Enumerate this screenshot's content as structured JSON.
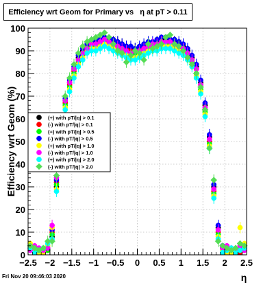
{
  "footer": {
    "timestamp": "Fri Nov 20 09:46:03 2020"
  },
  "chart_data": {
    "type": "scatter",
    "title": "Efficiency wrt Geom for Primary vs   η at pT > 0.11",
    "xlabel": "η",
    "ylabel": "Efficiency wrt Geom (%)",
    "xlim": [
      -2.5,
      2.5
    ],
    "ylim": [
      0,
      100
    ],
    "x_ticks": [
      "−2.5",
      "−2",
      "−1.5",
      "−1",
      "−0.5",
      "0",
      "0.5",
      "1",
      "1.5",
      "2",
      "2.5"
    ],
    "y_ticks": [
      "0",
      "10",
      "20",
      "30",
      "40",
      "50",
      "60",
      "70",
      "80",
      "90",
      "100"
    ],
    "grid": true,
    "legend_position": "middle-left",
    "x": [
      -2.45,
      -2.35,
      -2.25,
      -2.15,
      -2.05,
      -1.95,
      -1.85,
      -1.75,
      -1.65,
      -1.55,
      -1.45,
      -1.35,
      -1.25,
      -1.15,
      -1.05,
      -0.95,
      -0.85,
      -0.75,
      -0.65,
      -0.55,
      -0.45,
      -0.35,
      -0.25,
      -0.15,
      -0.05,
      0.05,
      0.15,
      0.25,
      0.35,
      0.45,
      0.55,
      0.65,
      0.75,
      0.85,
      0.95,
      1.05,
      1.15,
      1.25,
      1.35,
      1.45,
      1.55,
      1.65,
      1.75,
      1.85,
      1.95,
      2.05,
      2.15,
      2.25,
      2.35,
      2.45
    ],
    "series": [
      {
        "name": "(+) with pT/|q| > 0.1",
        "color": "#000000",
        "marker": "circle",
        "values": [
          3,
          2,
          1,
          1,
          2,
          8,
          30,
          55,
          68,
          76,
          82,
          87,
          90,
          92,
          93,
          94,
          94,
          95,
          95,
          94,
          94,
          93,
          92,
          91,
          91,
          91,
          92,
          93,
          93,
          94,
          95,
          95,
          95,
          94,
          93,
          92,
          90,
          87,
          83,
          76,
          66,
          52,
          30,
          12,
          3,
          2,
          1,
          1,
          2,
          3
        ]
      },
      {
        "name": "(-) with pT/|q| > 0.1",
        "color": "#ff0000",
        "marker": "circle",
        "values": [
          2,
          2,
          1,
          2,
          3,
          10,
          32,
          56,
          67,
          75,
          81,
          86,
          89,
          91,
          92,
          93,
          94,
          94,
          94,
          93,
          93,
          92,
          91,
          90,
          90,
          91,
          92,
          92,
          93,
          93,
          94,
          94,
          94,
          93,
          92,
          91,
          89,
          86,
          82,
          75,
          64,
          50,
          28,
          10,
          2,
          2,
          1,
          2,
          1,
          2
        ]
      },
      {
        "name": "(+) with pT/|q| > 0.5",
        "color": "#00ff00",
        "marker": "circle",
        "values": [
          4,
          3,
          2,
          1,
          2,
          9,
          31,
          54,
          66,
          74,
          80,
          85,
          88,
          91,
          92,
          92,
          93,
          94,
          93,
          92,
          91,
          90,
          89,
          88,
          89,
          89,
          90,
          91,
          92,
          92,
          93,
          93,
          93,
          92,
          91,
          90,
          88,
          85,
          80,
          73,
          63,
          49,
          27,
          9,
          3,
          2,
          2,
          1,
          2,
          4
        ]
      },
      {
        "name": "(-) with pT/|q| > 0.5",
        "color": "#0000ff",
        "marker": "circle",
        "values": [
          3,
          3,
          2,
          2,
          3,
          11,
          33,
          57,
          69,
          77,
          83,
          88,
          91,
          93,
          94,
          95,
          95,
          96,
          95,
          95,
          94,
          93,
          92,
          92,
          91,
          92,
          93,
          94,
          94,
          95,
          96,
          96,
          95,
          95,
          94,
          93,
          91,
          88,
          84,
          77,
          67,
          53,
          31,
          13,
          4,
          2,
          2,
          2,
          3,
          3
        ]
      },
      {
        "name": "(+) with pT/|q| > 1.0",
        "color": "#ffff00",
        "marker": "circle",
        "values": [
          5,
          2,
          1,
          1,
          4,
          12,
          29,
          53,
          65,
          73,
          79,
          84,
          87,
          90,
          91,
          91,
          92,
          93,
          92,
          91,
          90,
          89,
          88,
          87,
          87,
          88,
          89,
          90,
          91,
          91,
          92,
          92,
          92,
          91,
          90,
          89,
          87,
          84,
          79,
          72,
          62,
          48,
          26,
          8,
          2,
          1,
          1,
          2,
          12,
          5
        ]
      },
      {
        "name": "(-) with pT/|q| > 1.0",
        "color": "#ff00ff",
        "marker": "circle",
        "values": [
          2,
          4,
          3,
          2,
          3,
          13,
          34,
          58,
          68,
          76,
          82,
          86,
          89,
          91,
          93,
          93,
          94,
          95,
          94,
          93,
          92,
          91,
          90,
          89,
          90,
          90,
          91,
          92,
          93,
          93,
          94,
          94,
          94,
          93,
          92,
          91,
          89,
          86,
          82,
          75,
          65,
          51,
          29,
          11,
          3,
          4,
          3,
          2,
          4,
          2
        ]
      },
      {
        "name": "(+) with pT/|q| > 2.0",
        "color": "#00ffff",
        "marker": "circle",
        "values": [
          3,
          1,
          2,
          3,
          5,
          7,
          28,
          52,
          64,
          72,
          78,
          83,
          86,
          89,
          90,
          90,
          91,
          92,
          91,
          90,
          89,
          88,
          87,
          86,
          86,
          87,
          88,
          89,
          90,
          90,
          91,
          91,
          91,
          90,
          89,
          88,
          86,
          83,
          78,
          71,
          61,
          47,
          25,
          7,
          1,
          2,
          3,
          1,
          2,
          3
        ]
      },
      {
        "name": "(-) with pT/|q| > 2.0",
        "color": "#55dd55",
        "marker": "diamond",
        "values": [
          4,
          3,
          2,
          3,
          6,
          6,
          35,
          59,
          70,
          78,
          84,
          89,
          92,
          94,
          95,
          96,
          97,
          98,
          96,
          93,
          90,
          89,
          85,
          88,
          90,
          89,
          86,
          93,
          91,
          92,
          93,
          96,
          97,
          93,
          92,
          90,
          87,
          84,
          80,
          74,
          64,
          47,
          33,
          6,
          4,
          3,
          2,
          3,
          5,
          4
        ]
      }
    ]
  }
}
